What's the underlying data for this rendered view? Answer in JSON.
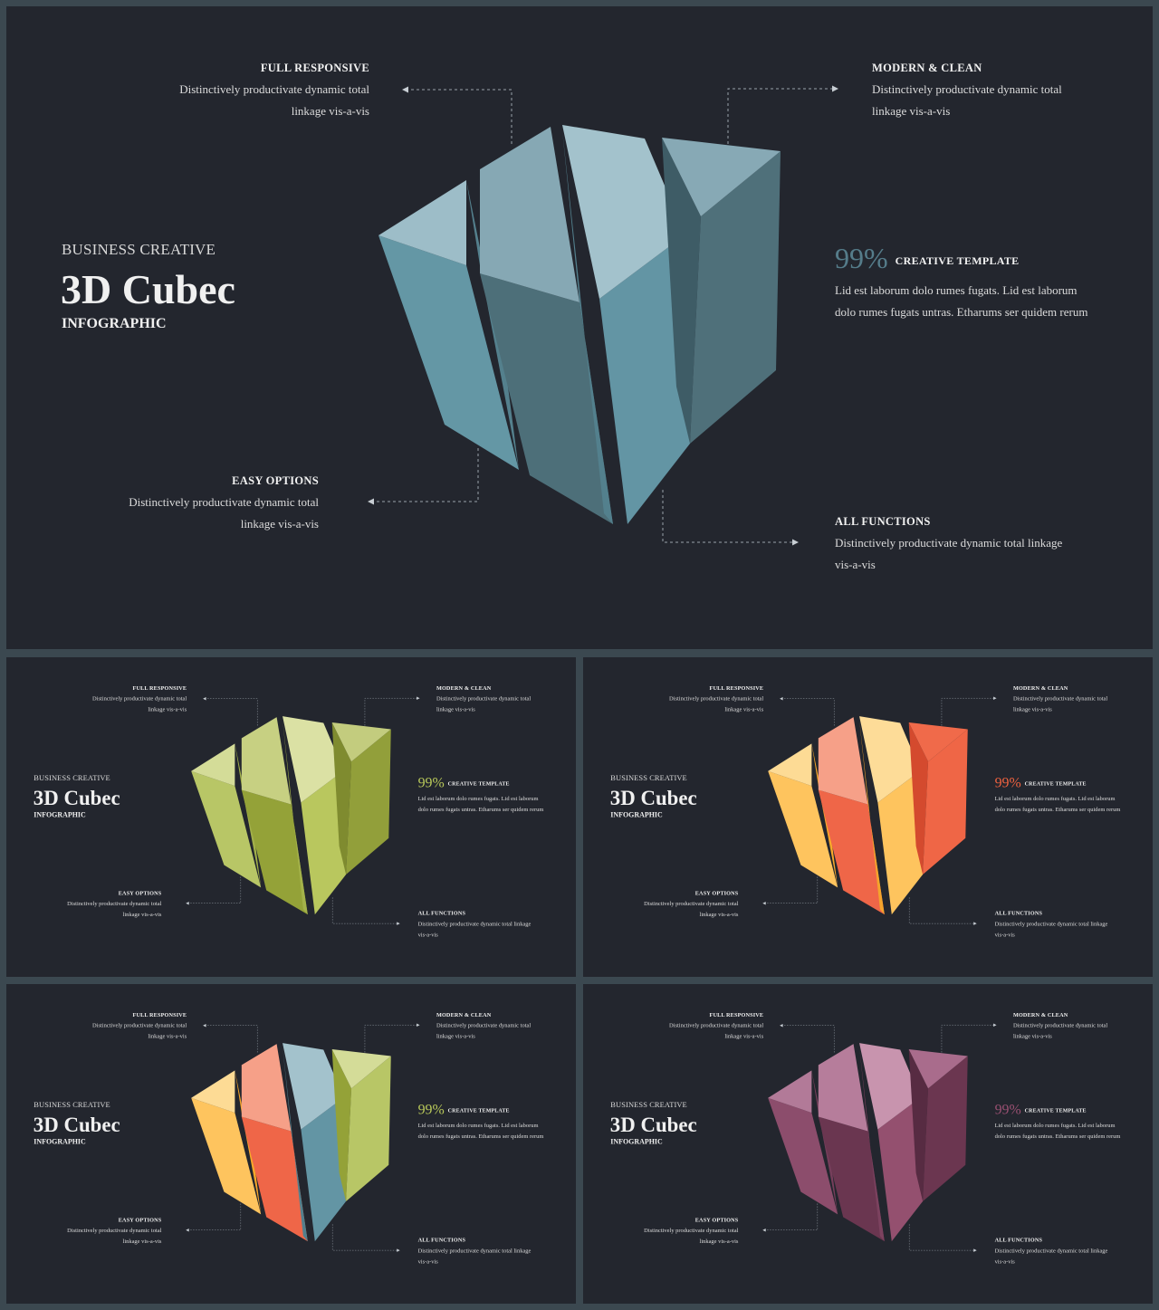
{
  "slides": [
    {
      "theme": "blue",
      "pct_color": "#557c8a",
      "colors": {
        "top": [
          "#9dbdc8",
          "#86a8b4",
          "#a3c2cc",
          "#87a9b5"
        ],
        "front": [
          "#6497a5",
          "#4d6f79",
          "#6395a4",
          "#4f707a"
        ],
        "side": [
          "#54808d",
          "#3f5d66",
          "#53808d",
          "#3e5c66"
        ]
      },
      "super_title": "BUSINESS CREATIVE",
      "title": "3D Cubec",
      "subtitle": "INFOGRAPHIC",
      "top_left": {
        "label": "FULL RESPONSIVE",
        "desc1": "Distinctively productivate  dynamic total",
        "desc2": "linkage vis-a-vis"
      },
      "top_right": {
        "label": "MODERN  & CLEAN",
        "desc1": "Distinctively productivate  dynamic total",
        "desc2": "linkage vis-a-vis"
      },
      "bottom_left": {
        "label": "EASY OPTIONS",
        "desc1": "Distinctively productivate  dynamic total",
        "desc2": "linkage vis-a-vis"
      },
      "bottom_right": {
        "label": "ALL FUNCTIONS",
        "desc1": "Distinctively productivate  dynamic total linkage",
        "desc2": "vis-a-vis"
      },
      "stat": {
        "value": "99%",
        "label": "CREATIVE  TEMPLATE",
        "desc1": "Lid est laborum  dolo rumes  fugats. Lid est laborum",
        "desc2": "dolo rumes fugats untras. Etharums ser quidem  rerum"
      }
    },
    {
      "theme": "green",
      "pct_color": "#b9c95a",
      "colors": {
        "top": [
          "#d4dc98",
          "#c7d082",
          "#dbe1a4",
          "#c3cc7e"
        ],
        "front": [
          "#b8c666",
          "#94a238",
          "#b9c75e",
          "#929f3a"
        ],
        "side": [
          "#a2b04a",
          "#7e8a2e",
          "#a4b24a",
          "#7f8b2f"
        ]
      },
      "super_title": "BUSINESS CREATIVE",
      "title": "3D Cubec",
      "subtitle": "INFOGRAPHIC",
      "top_left": {
        "label": "FULL RESPONSIVE",
        "desc1": "Distinctively productivate  dynamic total",
        "desc2": "linkage vis-a-vis"
      },
      "top_right": {
        "label": "MODERN  & CLEAN",
        "desc1": "Distinctively productivate  dynamic total",
        "desc2": "linkage vis-a-vis"
      },
      "bottom_left": {
        "label": "EASY OPTIONS",
        "desc1": "Distinctively productivate  dynamic total",
        "desc2": "linkage vis-a-vis"
      },
      "bottom_right": {
        "label": "ALL FUNCTIONS",
        "desc1": "Distinctively productivate  dynamic total linkage",
        "desc2": "vis-a-vis"
      },
      "stat": {
        "value": "99%",
        "label": "CREATIVE  TEMPLATE",
        "desc1": "Lid est laborum  dolo rumes  fugats. Lid est laborum",
        "desc2": "dolo rumes fugats untras. Etharums ser quidem  rerum"
      }
    },
    {
      "theme": "orange",
      "pct_color": "#f0623f",
      "colors": {
        "top": [
          "#fddb95",
          "#f6a088",
          "#fddc98",
          "#f06a4a"
        ],
        "front": [
          "#fec45e",
          "#ef6648",
          "#fec45e",
          "#ef6646"
        ],
        "side": [
          "#f7a72a",
          "#d94f34",
          "#f4a42c",
          "#d44a2e"
        ]
      },
      "super_title": "BUSINESS CREATIVE",
      "title": "3D Cubec",
      "subtitle": "INFOGRAPHIC",
      "top_left": {
        "label": "FULL RESPONSIVE",
        "desc1": "Distinctively productivate  dynamic total",
        "desc2": "linkage vis-a-vis"
      },
      "top_right": {
        "label": "MODERN  & CLEAN",
        "desc1": "Distinctively productivate  dynamic total",
        "desc2": "linkage vis-a-vis"
      },
      "bottom_left": {
        "label": "EASY OPTIONS",
        "desc1": "Distinctively productivate  dynamic total",
        "desc2": "linkage vis-a-vis"
      },
      "bottom_right": {
        "label": "ALL FUNCTIONS",
        "desc1": "Distinctively productivate  dynamic total linkage",
        "desc2": "vis-a-vis"
      },
      "stat": {
        "value": "99%",
        "label": "CREATIVE  TEMPLATE",
        "desc1": "Lid est laborum  dolo rumes  fugats. Lid est laborum",
        "desc2": "dolo rumes fugats untras. Etharums ser quidem  rerum"
      }
    },
    {
      "theme": "mixed",
      "pct_color": "#b9c95a",
      "colors": {
        "top": [
          "#fddb95",
          "#f6a088",
          "#a3c2cc",
          "#d4dc98"
        ],
        "front": [
          "#fec45e",
          "#ef6648",
          "#6395a4",
          "#b8c666"
        ],
        "side": [
          "#f7a72a",
          "#d94f34",
          "#53808d",
          "#94a238"
        ]
      },
      "super_title": "BUSINESS CREATIVE",
      "title": "3D Cubec",
      "subtitle": "INFOGRAPHIC",
      "top_left": {
        "label": "FULL RESPONSIVE",
        "desc1": "Distinctively productivate  dynamic total",
        "desc2": "linkage vis-a-vis"
      },
      "top_right": {
        "label": "MODERN  & CLEAN",
        "desc1": "Distinctively productivate  dynamic total",
        "desc2": "linkage vis-a-vis"
      },
      "bottom_left": {
        "label": "EASY OPTIONS",
        "desc1": "Distinctively productivate  dynamic total",
        "desc2": "linkage vis-a-vis"
      },
      "bottom_right": {
        "label": "ALL FUNCTIONS",
        "desc1": "Distinctively productivate  dynamic total linkage",
        "desc2": "vis-a-vis"
      },
      "stat": {
        "value": "99%",
        "label": "CREATIVE  TEMPLATE",
        "desc1": "Lid est laborum  dolo rumes  fugats. Lid est laborum",
        "desc2": "dolo rumes fugats untras. Etharums ser quidem  rerum"
      }
    },
    {
      "theme": "purple",
      "pct_color": "#9a5072",
      "colors": {
        "top": [
          "#b27a98",
          "#b67d9b",
          "#c894ae",
          "#a96c8c"
        ],
        "front": [
          "#8c4d6c",
          "#6a3650",
          "#94506f",
          "#6b3650"
        ],
        "side": [
          "#763e5b",
          "#572b42",
          "#7c425f",
          "#572b42"
        ]
      },
      "super_title": "BUSINESS CREATIVE",
      "title": "3D Cubec",
      "subtitle": "INFOGRAPHIC",
      "top_left": {
        "label": "FULL RESPONSIVE",
        "desc1": "Distinctively productivate  dynamic total",
        "desc2": "linkage vis-a-vis"
      },
      "top_right": {
        "label": "MODERN  & CLEAN",
        "desc1": "Distinctively productivate  dynamic total",
        "desc2": "linkage vis-a-vis"
      },
      "bottom_left": {
        "label": "EASY OPTIONS",
        "desc1": "Distinctively productivate  dynamic total",
        "desc2": "linkage vis-a-vis"
      },
      "bottom_right": {
        "label": "ALL FUNCTIONS",
        "desc1": "Distinctively productivate  dynamic total linkage",
        "desc2": "vis-a-vis"
      },
      "stat": {
        "value": "99%",
        "label": "CREATIVE  TEMPLATE",
        "desc1": "Lid est laborum  dolo rumes  fugats. Lid est laborum",
        "desc2": "dolo rumes fugats untras. Etharums ser quidem  rerum"
      }
    }
  ]
}
